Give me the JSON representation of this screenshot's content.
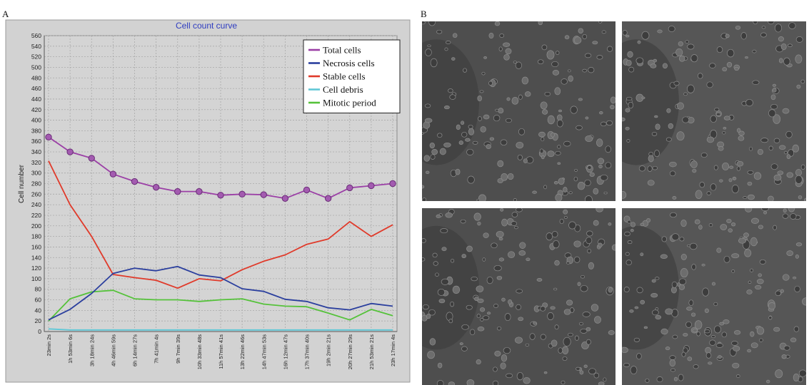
{
  "panels": {
    "a_label": "A",
    "b_label": "B"
  },
  "chart_data": {
    "type": "line",
    "title": "Cell count curve",
    "xlabel": "",
    "ylabel": "Cell number",
    "ylim": [
      0,
      560
    ],
    "yticks": [
      0,
      20,
      40,
      60,
      80,
      100,
      120,
      140,
      160,
      180,
      200,
      220,
      240,
      260,
      280,
      300,
      320,
      340,
      360,
      380,
      400,
      420,
      440,
      460,
      480,
      500,
      520,
      540,
      560
    ],
    "grid": true,
    "legend_position": "top-right",
    "categories": [
      "23min 2s",
      "1h 53min 6s",
      "3h 18min 24s",
      "4h 46min 59s",
      "6h 14min 27s",
      "7h 41min 4s",
      "9h 7min 39s",
      "10h 33min 48s",
      "11h 57min 41s",
      "13h 22min 46s",
      "14h 47min 53s",
      "16h 12min 47s",
      "17h 37min 40s",
      "19h 2min 21s",
      "20h 27min 29s",
      "21h 53min 21s",
      "23h 17min 4s"
    ],
    "series": [
      {
        "name": "Total cells",
        "color": "#9b3fa6",
        "marker": true,
        "values": [
          368,
          340,
          328,
          298,
          284,
          273,
          265,
          265,
          258,
          260,
          259,
          252,
          268,
          252,
          272,
          276,
          280
        ]
      },
      {
        "name": "Necrosis cells",
        "color": "#2b3f9e",
        "values": [
          22,
          42,
          72,
          110,
          120,
          115,
          123,
          107,
          102,
          81,
          76,
          61,
          57,
          45,
          41,
          53,
          48
        ]
      },
      {
        "name": "Stable cells",
        "color": "#e03a2a",
        "values": [
          323,
          240,
          180,
          108,
          102,
          97,
          82,
          100,
          96,
          117,
          133,
          145,
          165,
          175,
          208,
          180,
          202
        ]
      },
      {
        "name": "Cell debris",
        "color": "#5fc7d6",
        "values": [
          5,
          3,
          3,
          3,
          3,
          3,
          3,
          3,
          3,
          3,
          3,
          3,
          3,
          3,
          3,
          3,
          3
        ]
      },
      {
        "name": "Mitotic period",
        "color": "#55c23a",
        "values": [
          20,
          62,
          75,
          78,
          62,
          60,
          60,
          57,
          60,
          62,
          52,
          48,
          47,
          35,
          22,
          42,
          30
        ]
      }
    ]
  }
}
